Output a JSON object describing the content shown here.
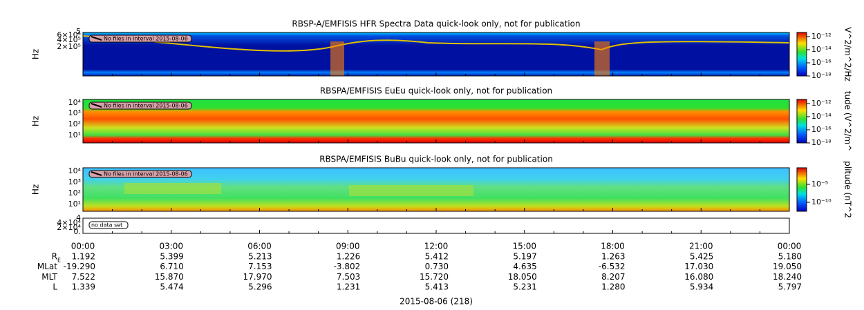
{
  "panels": [
    {
      "title": "RBSP-A/EMFISIS  HFR Spectra Data quick-look only, not for publication",
      "y_label": "Hz",
      "y_ticks": [
        "5",
        "6×10⁵",
        "4×10⁵",
        "2×10⁵"
      ],
      "note": "No files in interval 2015-08-06",
      "colorbar_ticks": [
        "10⁻¹²",
        "10⁻¹⁴",
        "10⁻¹⁶",
        "10⁻¹⁸"
      ],
      "colorbar_label": "V^2/m^2/Hz"
    },
    {
      "title": "RBSPA/EMFISIS  EuEu quick-look only, not for publication",
      "y_label": "Hz",
      "y_ticks": [
        "10⁴",
        "10³",
        "10²",
        "10¹"
      ],
      "note": "No files in interval 2015-08-06",
      "colorbar_ticks": [
        "10⁻¹²",
        "10⁻¹⁴",
        "10⁻¹⁶",
        "10⁻¹⁸"
      ],
      "colorbar_label": "tude (V^2/m^"
    },
    {
      "title": "RBSPA/EMFISIS  BuBu quick-look only, not for publication",
      "y_label": "Hz",
      "y_ticks": [
        "10⁴",
        "10³",
        "10²",
        "10¹"
      ],
      "note": "No files in interval 2015-08-06",
      "colorbar_ticks": [
        "10⁻⁵",
        "10⁻¹⁰"
      ],
      "colorbar_label": "plitude (nT^2"
    },
    {
      "y_ticks": [
        "4",
        "4×10⁴",
        "2×10⁴",
        "0."
      ],
      "note": "no data set"
    }
  ],
  "x_ticks": [
    "00:00",
    "03:00",
    "06:00",
    "09:00",
    "12:00",
    "15:00",
    "18:00",
    "21:00",
    "00:00"
  ],
  "ephemeris": {
    "rows": [
      {
        "label": "R",
        "label_sub": "E",
        "values": [
          "1.192",
          "5.399",
          "5.213",
          "1.226",
          "5.412",
          "5.197",
          "1.263",
          "5.425",
          "5.180"
        ]
      },
      {
        "label": "MLat",
        "values": [
          "-19.290",
          "6.710",
          "7.153",
          "-3.802",
          "0.730",
          "4.635",
          "-6.532",
          "17.030",
          "19.050"
        ]
      },
      {
        "label": "MLT",
        "values": [
          "7.522",
          "15.870",
          "17.970",
          "7.503",
          "15.720",
          "18.050",
          "8.207",
          "16.080",
          "18.240"
        ]
      },
      {
        "label": "L",
        "values": [
          "1.339",
          "5.474",
          "5.296",
          "1.231",
          "5.413",
          "5.231",
          "1.280",
          "5.934",
          "5.797"
        ]
      }
    ]
  },
  "date": "2015-08-06 (218)"
}
